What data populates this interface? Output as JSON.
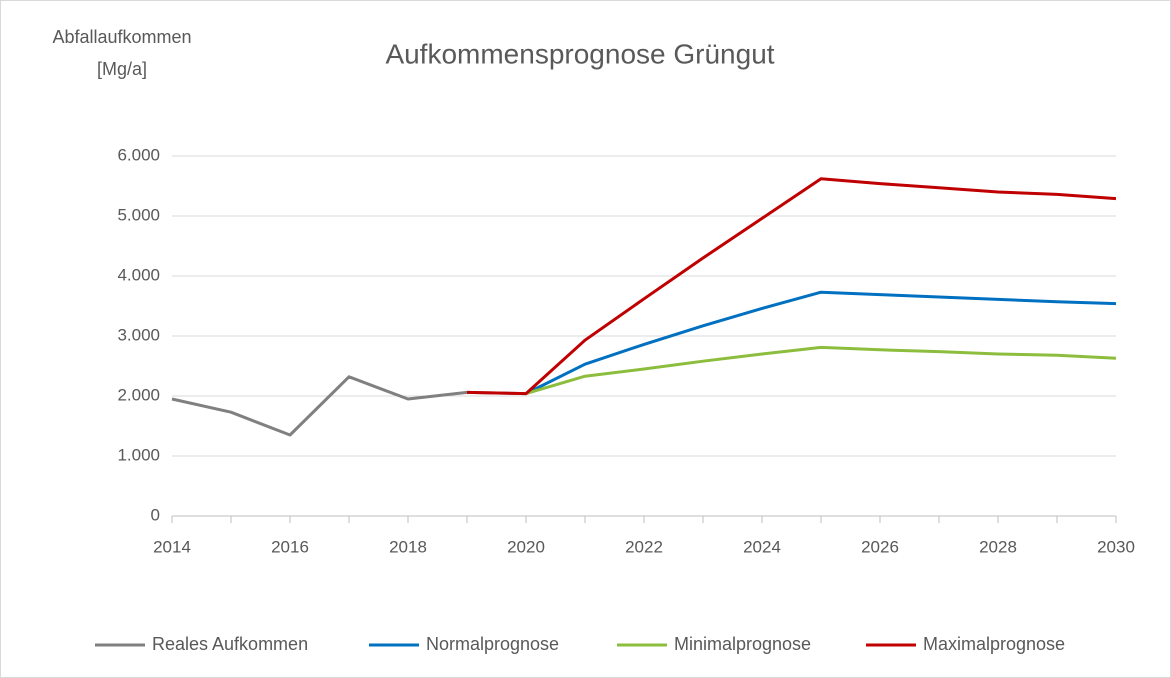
{
  "chart_data": {
    "type": "line",
    "title": "Aufkommensprognose  Grüngut",
    "y_label": [
      "Abfallaufkommen",
      "[Mg/a]"
    ],
    "x": [
      2014,
      2015,
      2016,
      2017,
      2018,
      2019,
      2020,
      2021,
      2022,
      2023,
      2024,
      2025,
      2026,
      2027,
      2028,
      2029,
      2030
    ],
    "series": [
      {
        "name": "Reales Aufkommen",
        "color": "#808080",
        "values": [
          1950,
          1730,
          1350,
          2320,
          1950,
          2060,
          2040,
          null,
          null,
          null,
          null,
          null,
          null,
          null,
          null,
          null,
          null
        ]
      },
      {
        "name": "Normalprognose",
        "color": "#0070c0",
        "values": [
          null,
          null,
          null,
          null,
          null,
          null,
          2040,
          2530,
          2860,
          3170,
          3460,
          3730,
          3690,
          3650,
          3610,
          3570,
          3540
        ]
      },
      {
        "name": "Minimalprognose",
        "color": "#8cbd3c",
        "values": [
          null,
          null,
          null,
          null,
          null,
          null,
          2040,
          2330,
          2450,
          2580,
          2700,
          2810,
          2770,
          2740,
          2700,
          2680,
          2630
        ]
      },
      {
        "name": "Maximalprognose",
        "color": "#c00000",
        "values": [
          null,
          null,
          null,
          null,
          null,
          2060,
          2040,
          2930,
          3620,
          4300,
          4960,
          5620,
          5540,
          5470,
          5400,
          5360,
          5290
        ]
      }
    ],
    "xlim": [
      2014,
      2030
    ],
    "xticks": [
      2014,
      2016,
      2018,
      2020,
      2022,
      2024,
      2026,
      2028,
      2030
    ],
    "ylim": [
      0,
      6000
    ],
    "yticks": [
      0,
      {
        "value": 1000,
        "label": "1.000"
      },
      {
        "value": 2000,
        "label": "2.000"
      },
      {
        "value": 3000,
        "label": "3.000"
      },
      {
        "value": 4000,
        "label": "4.000"
      },
      {
        "value": 5000,
        "label": "5.000"
      },
      {
        "value": 6000,
        "label": "6.000"
      }
    ],
    "grid": true,
    "legend": "bottom"
  }
}
